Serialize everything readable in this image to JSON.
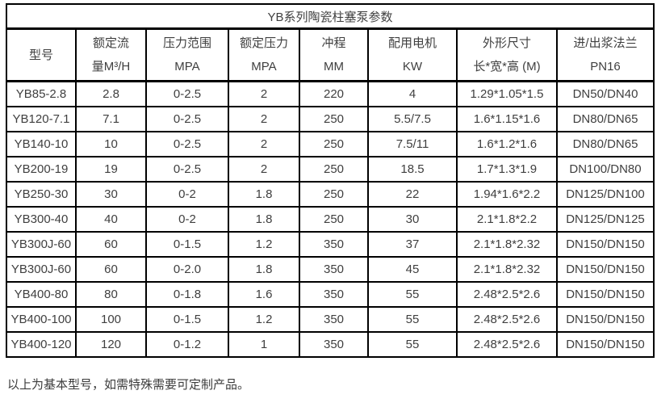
{
  "table": {
    "title": "YB系列陶瓷柱塞泵参数",
    "columns": [
      {
        "line1": "型号",
        "line2": ""
      },
      {
        "line1": "额定流",
        "line2": "量M³/H"
      },
      {
        "line1": "压力范围",
        "line2": "MPA"
      },
      {
        "line1": "额定压力",
        "line2": "MPA"
      },
      {
        "line1": "冲程",
        "line2": "MM"
      },
      {
        "line1": "配用电机",
        "line2": "KW"
      },
      {
        "line1": "外形尺寸",
        "line2": "长*宽*高 (M)"
      },
      {
        "line1": "进/出浆法兰",
        "line2": "PN16"
      }
    ],
    "rows": [
      [
        "YB85-2.8",
        "2.8",
        "0-2.5",
        "2",
        "220",
        "4",
        "1.29*1.05*1.5",
        "DN50/DN40"
      ],
      [
        "YB120-7.1",
        "7.1",
        "0-2.5",
        "2",
        "250",
        "5.5/7.5",
        "1.6*1.15*1.6",
        "DN80/DN65"
      ],
      [
        "YB140-10",
        "10",
        "0-2.5",
        "2",
        "250",
        "7.5/11",
        "1.6*1.2*1.6",
        "DN80/DN65"
      ],
      [
        "YB200-19",
        "19",
        "0-2.5",
        "2",
        "250",
        "18.5",
        "1.7*1.3*1.9",
        "DN100/DN80"
      ],
      [
        "YB250-30",
        "30",
        "0-2",
        "1.8",
        "250",
        "22",
        "1.94*1.6*2.2",
        "DN125/DN100"
      ],
      [
        "YB300-40",
        "40",
        "0-2",
        "1.8",
        "250",
        "30",
        "2.1*1.8*2.2",
        "DN125/DN125"
      ],
      [
        "YB300J-60",
        "60",
        "0-1.5",
        "1.2",
        "350",
        "37",
        "2.1*1.8*2.32",
        "DN150/DN150"
      ],
      [
        "YB300J-60",
        "60",
        "0-2.0",
        "1.8",
        "350",
        "45",
        "2.1*1.8*2.32",
        "DN150/DN150"
      ],
      [
        "YB400-80",
        "80",
        "0-1.8",
        "1.6",
        "350",
        "55",
        "2.48*2.5*2.6",
        "DN150/DN150"
      ],
      [
        "YB400-100",
        "100",
        "0-1.5",
        "1.2",
        "350",
        "55",
        "2.48*2.5*2.6",
        "DN150/DN150"
      ],
      [
        "YB400-120",
        "120",
        "0-1.2",
        "1",
        "350",
        "55",
        "2.48*2.5*2.6",
        "DN150/DN150"
      ]
    ],
    "footnote": "以上为基本型号，如需特殊需要可定制产品。"
  },
  "colors": {
    "border": "#000000",
    "text": "#3f3f3f",
    "background": "#ffffff"
  }
}
